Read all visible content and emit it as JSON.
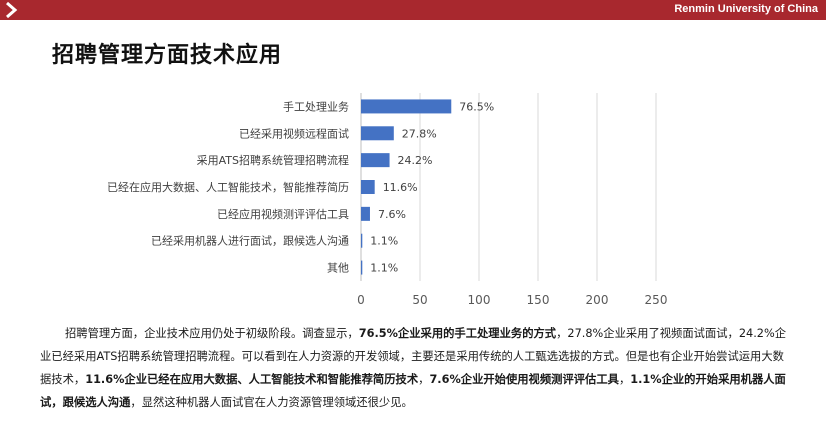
{
  "header": {
    "university": "Renmin University of China"
  },
  "slide": {
    "title": "招聘管理方面技术应用"
  },
  "chart_data": {
    "type": "bar",
    "orientation": "horizontal",
    "categories": [
      "手工处理业务",
      "已经采用视频远程面试",
      "采用ATS招聘系统管理招聘流程",
      "已经在应用大数据、人工智能技术，智能推荐简历",
      "已经应用视频测评评估工具",
      "已经采用机器人进行面试，跟候选人沟通",
      "其他"
    ],
    "values": [
      76.5,
      27.8,
      24.2,
      11.6,
      7.6,
      1.1,
      1.1
    ],
    "data_labels": [
      "76.5%",
      "27.8%",
      "24.2%",
      "11.6%",
      "7.6%",
      "1.1%",
      "1.1%"
    ],
    "xlim": [
      0,
      250
    ],
    "xticks": [
      0,
      50,
      100,
      150,
      200,
      250
    ],
    "grid": true,
    "bar_color": "#4472c4"
  },
  "paragraph": {
    "s1": "招聘管理方面，企业技术应用仍处于初级阶段。调查显示，",
    "b1": "76.5%企业采用的手工处理业务的方式",
    "s2": "，27.8%企业采用了视频面试面试，24.2%企业已经采用ATS招聘系统管理招聘流程。可以看到在人力资源的开发领域，主要还是采用传统的人工甄选选拔的方式。但是也有企业开始尝试运用大数据技术，",
    "b2": "11.6%企业已经在应用大数据、人工智能技术和智能推荐简历技术",
    "s3": "，",
    "b3": "7.6%企业开始使用视频测评评估工具",
    "s4": "，",
    "b4": "1.1%企业的开始采用机器人面试，跟候选人沟通",
    "s5": "，显然这种机器人面试官在人力资源管理领域还很少见。"
  }
}
